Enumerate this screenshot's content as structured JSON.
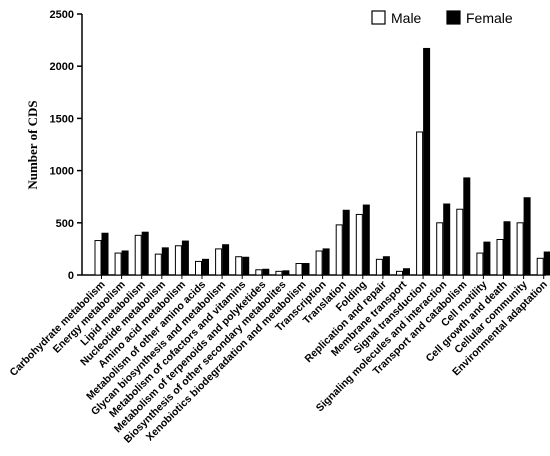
{
  "chart_data": {
    "type": "bar",
    "title": "",
    "xlabel": "",
    "ylabel": "Number of CDS",
    "ylim": [
      0,
      2500
    ],
    "yticks": [
      0,
      500,
      1000,
      1500,
      2000,
      2500
    ],
    "grid": false,
    "legend_position": "top-right",
    "categories": [
      "Carbohydrate metabolism",
      "Energy metabolism",
      "Lipid metabolism",
      "Nucleotide metabolism",
      "Amino acid metabolism",
      "Metabolism of other amino acids",
      "Glycan biosynthesis and metabolism",
      "Metabolism of cofactors and vitamins",
      "Metabolism of terpenoids and polyketides",
      "Biosynthesis of other secondary metabolites",
      "Xenobiotics biodegradation and metabolism",
      "Transcription",
      "Translation",
      "Folding",
      "Replication and repair",
      "Membrane transport",
      "Signal transduction",
      "Signaling molecules and interaction",
      "Transport and catabolism",
      "Cell motility",
      "Cell growth and death",
      "Cellular community",
      "Environmental adaptation"
    ],
    "series": [
      {
        "name": "Male",
        "color": "#ffffff",
        "values": [
          330,
          210,
          380,
          200,
          280,
          130,
          250,
          175,
          50,
          35,
          110,
          230,
          480,
          580,
          150,
          35,
          1370,
          500,
          630,
          210,
          340,
          500,
          160
        ]
      },
      {
        "name": "Female",
        "color": "#000000",
        "values": [
          400,
          230,
          410,
          260,
          325,
          150,
          290,
          170,
          55,
          40,
          110,
          250,
          620,
          670,
          175,
          60,
          2170,
          680,
          930,
          315,
          510,
          740,
          220
        ]
      }
    ]
  }
}
